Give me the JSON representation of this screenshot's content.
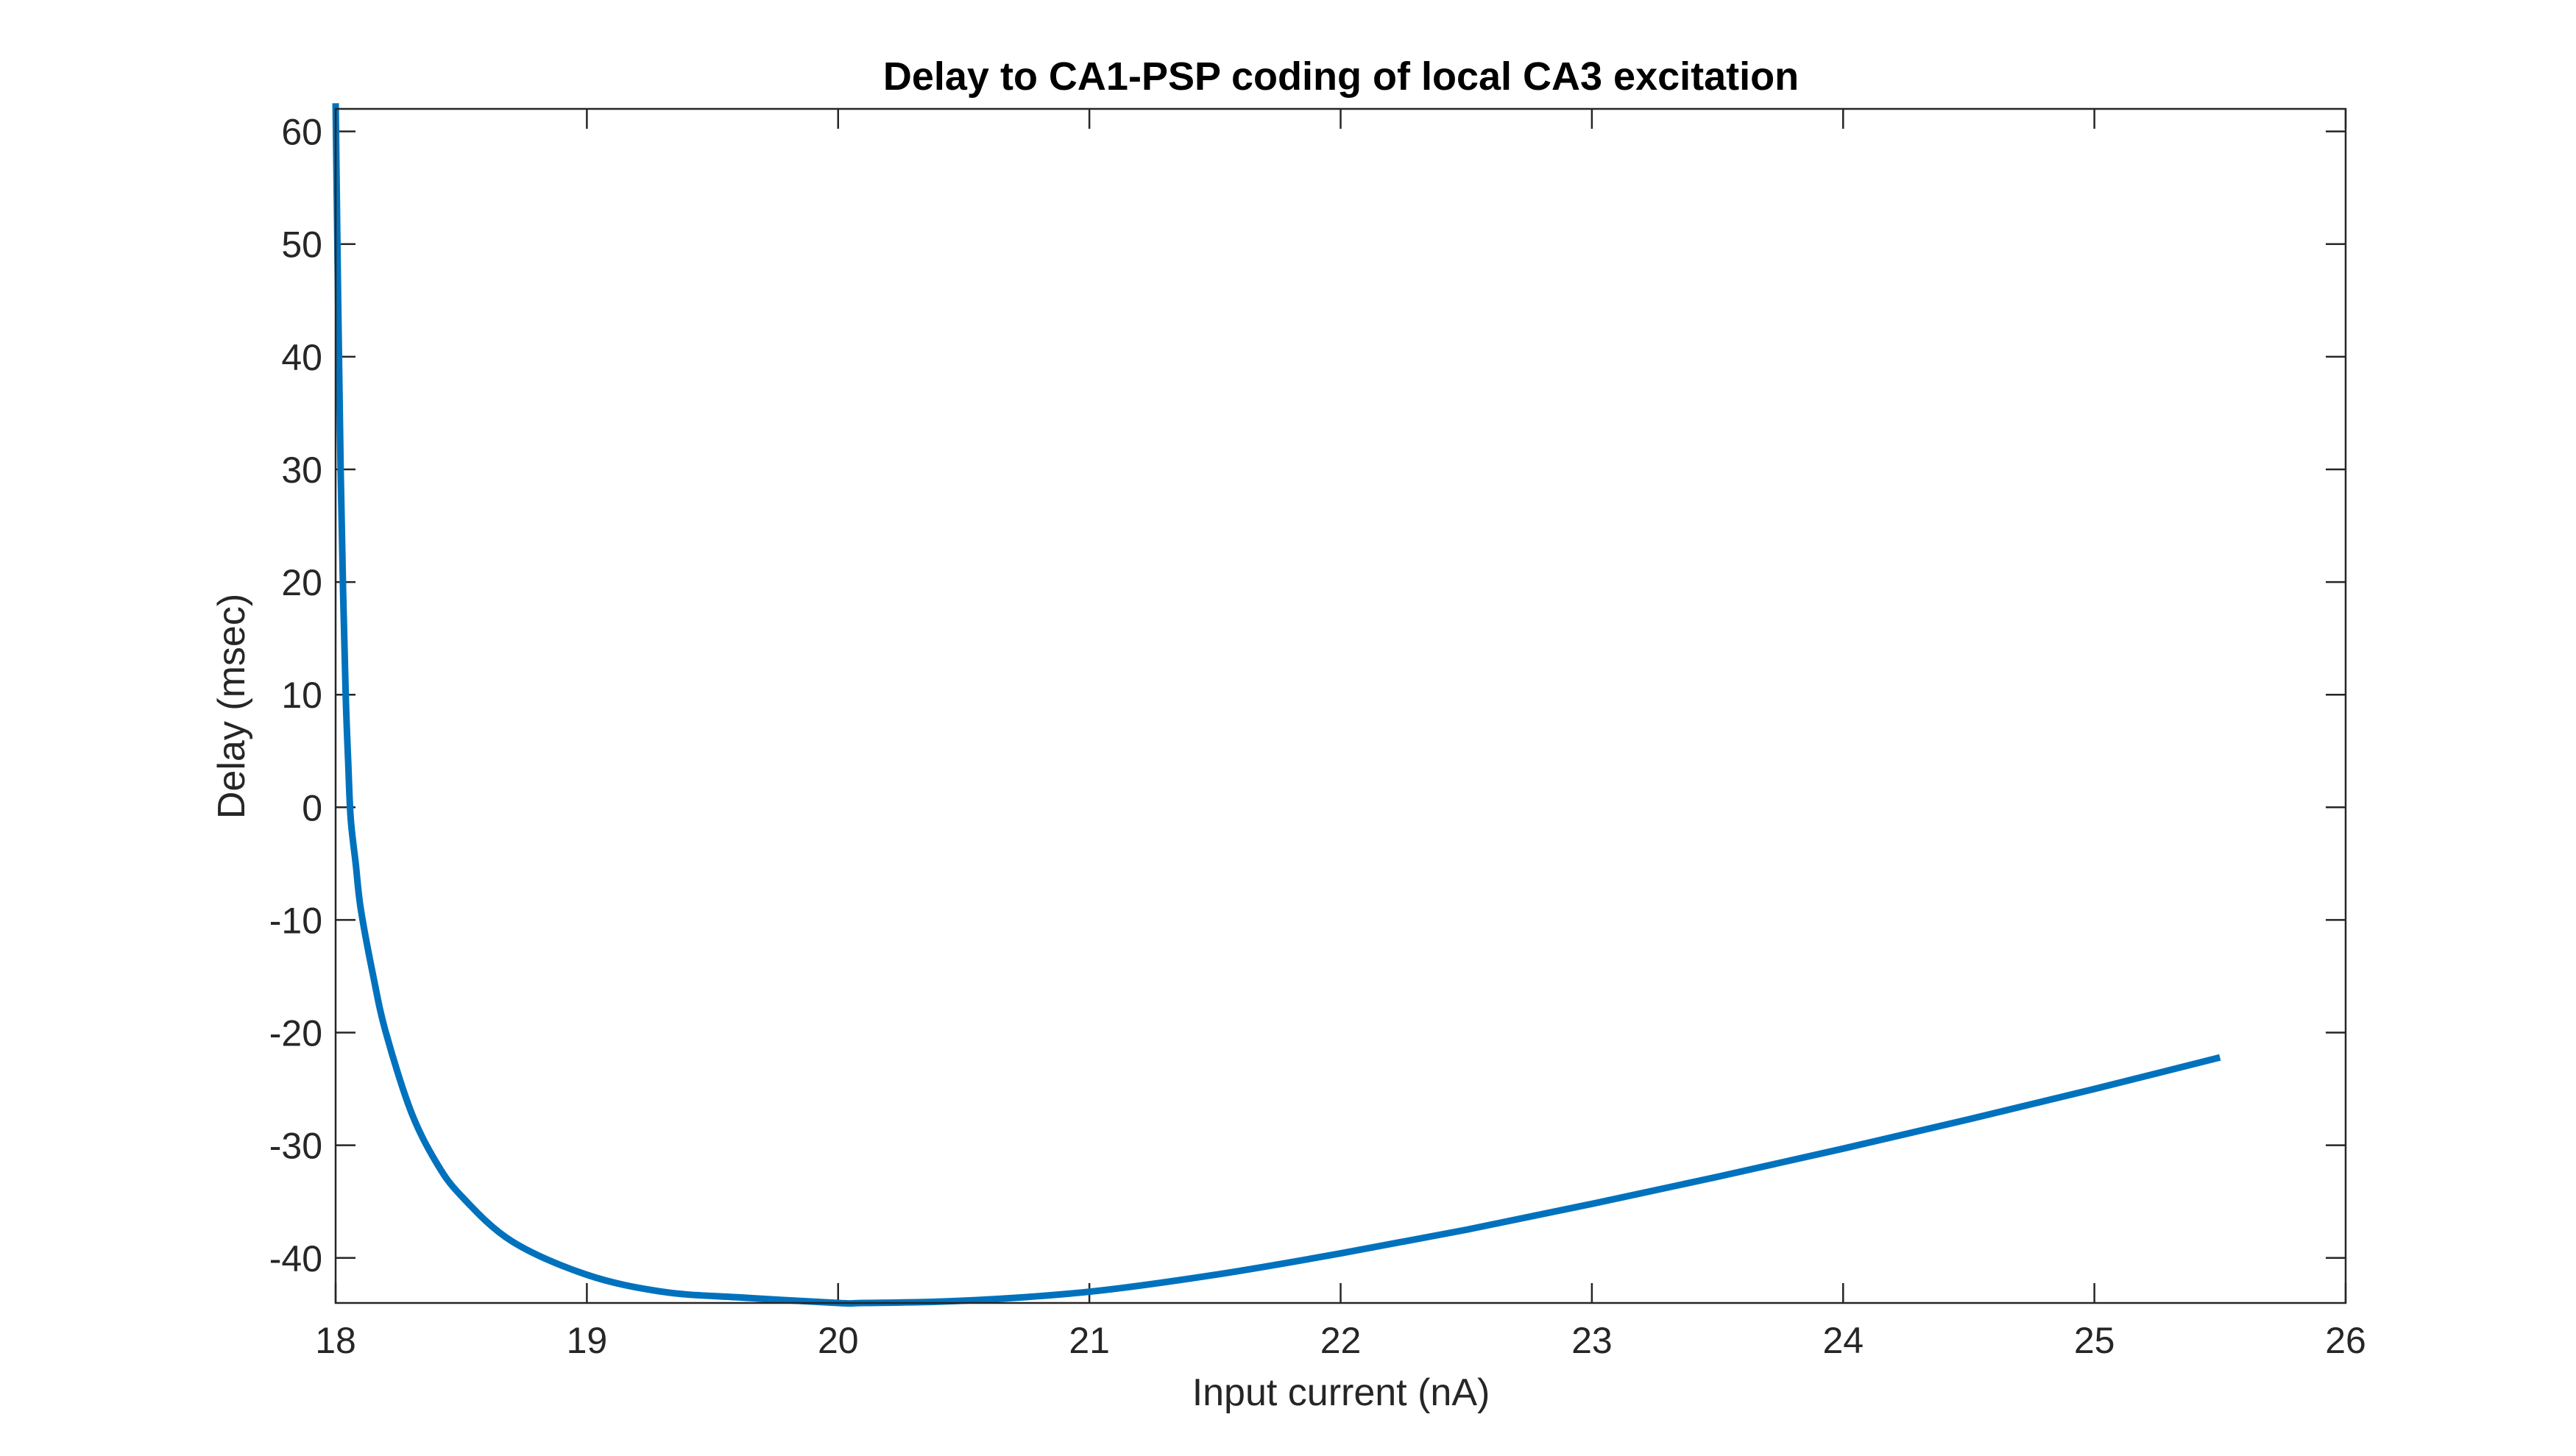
{
  "chart_data": {
    "type": "line",
    "title": "Delay to CA1-PSP coding of local CA3 excitation",
    "xlabel": "Input current (nA)",
    "ylabel": "Delay (msec)",
    "xlim": [
      18,
      26
    ],
    "ylim": [
      -44,
      62
    ],
    "xticks": [
      18,
      19,
      20,
      21,
      22,
      23,
      24,
      25,
      26
    ],
    "yticks": [
      -40,
      -30,
      -20,
      -10,
      0,
      10,
      20,
      30,
      40,
      50,
      60
    ],
    "grid": false,
    "box": true,
    "series": [
      {
        "color": "#0072BD",
        "x": [
          18.0,
          18.01,
          18.02,
          18.03,
          18.04,
          18.05,
          18.06,
          18.08,
          18.1,
          18.15,
          18.2,
          18.3,
          18.4,
          18.5,
          18.7,
          19.0,
          19.3,
          19.6,
          20.0,
          20.1,
          20.5,
          21.0,
          21.5,
          22.0,
          22.5,
          23.0,
          23.5,
          24.0,
          24.5,
          25.0,
          25.5
        ],
        "y": [
          62.5,
          45,
          30,
          19,
          10,
          4,
          -1,
          -5,
          -9,
          -15,
          -20,
          -27,
          -31.5,
          -34.5,
          -38.5,
          -41.5,
          -43,
          -43.5,
          -44,
          -44,
          -43.8,
          -43,
          -41.5,
          -39.6,
          -37.5,
          -35.2,
          -32.8,
          -30.3,
          -27.7,
          -25,
          -22.2
        ]
      }
    ]
  }
}
